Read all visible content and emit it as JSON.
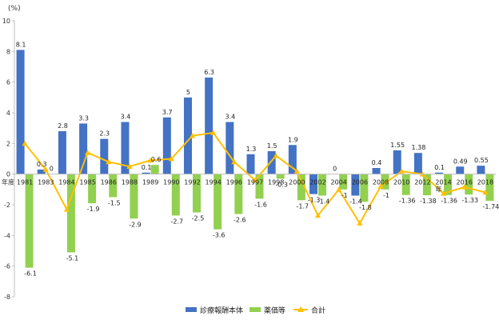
{
  "chart_data": {
    "type": "bar",
    "unit_label": "(%)",
    "year_axis_label": "年度",
    "year_axis_label_right": "年",
    "categories": [
      "1981",
      "1983",
      "1984",
      "1985",
      "1986",
      "1988",
      "1989",
      "1990",
      "1992",
      "1994",
      "1996",
      "1997",
      "1998",
      "2000",
      "2002",
      "2004",
      "2006",
      "2008",
      "2010",
      "2012",
      "2014",
      "2016",
      "2018"
    ],
    "series": [
      {
        "name": "診療報酬本体",
        "kind": "bar",
        "color": "#4472C4",
        "values": [
          8.1,
          0.3,
          2.8,
          3.3,
          2.3,
          3.4,
          0.1,
          3.7,
          5,
          6.3,
          3.4,
          1.3,
          1.5,
          1.9,
          -1.3,
          0,
          -1.4,
          0.4,
          1.55,
          1.38,
          0.1,
          0.49,
          0.55
        ],
        "labels": [
          "8.1",
          "0.3",
          "2.8",
          "3.3",
          "2.3",
          "3.4",
          "0.1",
          "3.7",
          "5",
          "6.3",
          "3.4",
          "1.3",
          "1.5",
          "1.9",
          "-1.3",
          "0",
          "-1.4",
          "0.4",
          "1.55",
          "1.38",
          "0.1",
          "0.49",
          "0.55"
        ]
      },
      {
        "name": "薬価等",
        "kind": "bar",
        "color": "#92D050",
        "values": [
          -6.1,
          0,
          -5.1,
          -1.9,
          -1.5,
          -2.9,
          0.6,
          -2.7,
          -2.5,
          -3.6,
          -2.6,
          -1.6,
          -0.3,
          -1.7,
          -1.4,
          -1,
          -1.8,
          -1,
          -1.36,
          -1.38,
          -1.36,
          -1.33,
          -1.74
        ],
        "labels": [
          "-6.1",
          "0",
          "-5.1",
          "-1.9",
          "-1.5",
          "-2.9",
          "0.6",
          "-2.7",
          "-2.5",
          "-3.6",
          "-2.6",
          "-1.6",
          "-0.3",
          "-1.7",
          "-1.4",
          "-1",
          "-1.8",
          "-1",
          "-1.36",
          "-1.38",
          "-1.36",
          "-1.33",
          "-1.74"
        ]
      },
      {
        "name": "合計",
        "kind": "line",
        "color": "#FFC000",
        "values": [
          2.0,
          0.3,
          -2.3,
          1.4,
          0.8,
          0.5,
          0.9,
          1.0,
          2.5,
          2.7,
          0.8,
          -0.4,
          1.2,
          0.2,
          -2.7,
          -1.0,
          -3.2,
          -0.8,
          0.19,
          0.0,
          -1.26,
          -0.84,
          -1.19
        ]
      }
    ],
    "ylim": [
      -8,
      10
    ],
    "yticks": [
      -8,
      -6,
      -4,
      -2,
      0,
      2,
      4,
      6,
      8,
      10
    ],
    "grid": false,
    "legend_position": "bottom"
  }
}
